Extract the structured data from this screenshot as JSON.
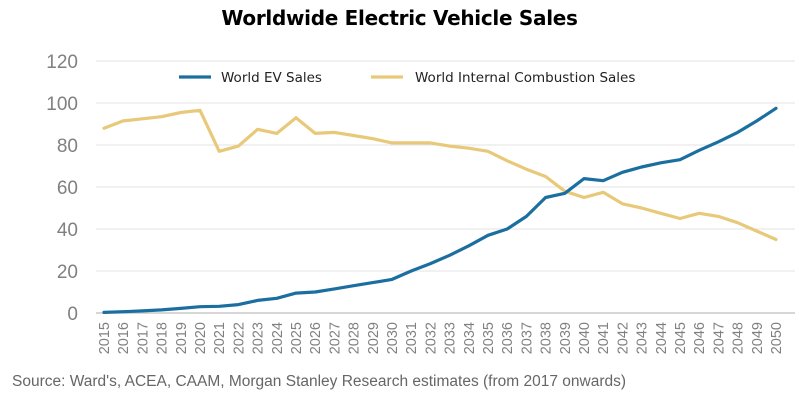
{
  "chart_data": {
    "type": "line",
    "title": "Worldwide Electric Vehicle Sales",
    "xlabel": "",
    "ylabel": "",
    "ylim": [
      0,
      120
    ],
    "yticks": [
      0,
      20,
      40,
      60,
      80,
      100,
      120
    ],
    "grid": true,
    "legend_position": "top-center",
    "x": [
      "2015",
      "2016",
      "2017",
      "2018",
      "2019",
      "2020",
      "2021",
      "2022",
      "2023",
      "2024",
      "2025",
      "2026",
      "2027",
      "2028",
      "2029",
      "2030",
      "2031",
      "2032",
      "2033",
      "2034",
      "2035",
      "2036",
      "2037",
      "2038",
      "2039",
      "2040",
      "2041",
      "2042",
      "2043",
      "2044",
      "2045",
      "2046",
      "2047",
      "2048",
      "2049",
      "2050"
    ],
    "series": [
      {
        "name": "World EV Sales",
        "color": "#1b6fa0",
        "values": [
          0.3,
          0.6,
          1,
          1.5,
          2.2,
          3,
          3.2,
          4,
          6,
          7,
          9.5,
          10,
          11.5,
          13,
          14.5,
          16,
          20,
          23.5,
          27.5,
          32,
          37,
          40,
          46,
          55,
          57,
          64,
          63,
          67,
          69.5,
          71.5,
          73,
          77.5,
          81.5,
          86,
          91.5,
          97.5
        ]
      },
      {
        "name": "World Internal Combustion Sales",
        "color": "#e8c97a",
        "values": [
          88,
          91.5,
          92.5,
          93.5,
          95.5,
          96.5,
          77,
          79.5,
          87.5,
          85.5,
          93,
          85.5,
          86,
          84.5,
          83,
          81,
          81,
          81,
          79.5,
          78.5,
          77,
          72.5,
          68.5,
          65,
          58,
          55,
          57.5,
          52,
          50,
          47.5,
          45,
          47.5,
          46,
          43,
          39,
          35
        ]
      }
    ],
    "source": "Source: Ward's, ACEA, CAAM, Morgan Stanley Research estimates (from 2017 onwards)"
  }
}
